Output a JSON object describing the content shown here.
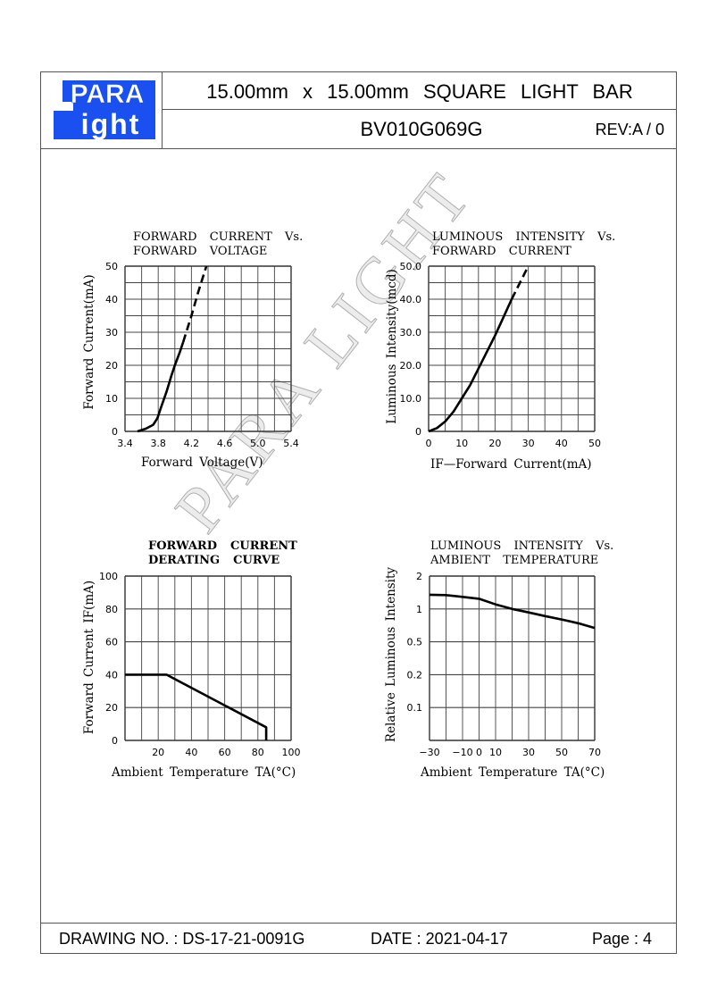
{
  "header": {
    "logo_text_top": "PARA",
    "logo_text_bottom": "ight",
    "title": "15.00mm x 15.00mm   SQUARE   LIGHT   BAR",
    "part_number": "BV010G069G",
    "revision": "REV:A / 0"
  },
  "footer": {
    "drawing_no": "DRAWING NO. : DS-17-21-0091G",
    "date": "DATE : 2021-04-17",
    "page": "Page : 4"
  },
  "watermark": "PARA LIGHT",
  "colors": {
    "brand_blue": "#1a4ff0",
    "grid": "#666666",
    "curve": "#000000"
  },
  "chart_data": [
    {
      "type": "line",
      "title": "FORWARD  CURRENT  Vs.\nFORWARD  VOLTAGE",
      "xlabel": "Forward Voltage(V)",
      "ylabel": "Forward Current(mA)",
      "xlim": [
        3.4,
        5.4
      ],
      "ylim": [
        0,
        50
      ],
      "x_ticks": [
        "3.4",
        "3.8",
        "4.2",
        "4.6",
        "5.0",
        "5.4"
      ],
      "x_tick_values": [
        3.4,
        3.8,
        4.2,
        4.6,
        5.0,
        5.4
      ],
      "y_ticks": [
        "0",
        "10",
        "20",
        "30",
        "40",
        "50"
      ],
      "y_tick_values": [
        0,
        10,
        20,
        30,
        40,
        50
      ],
      "grid": true,
      "grid_cols": 10,
      "grid_rows": 10,
      "series": [
        {
          "name": "measured",
          "style": "solid",
          "points": [
            [
              3.55,
              0
            ],
            [
              3.65,
              0.8
            ],
            [
              3.74,
              2
            ],
            [
              3.79,
              4
            ],
            [
              3.83,
              7
            ],
            [
              3.9,
              12
            ],
            [
              3.96,
              17
            ],
            [
              4.0,
              20
            ],
            [
              4.06,
              24
            ],
            [
              4.1,
              27
            ]
          ]
        },
        {
          "name": "extrapolated",
          "style": "dashed",
          "points": [
            [
              4.1,
              27
            ],
            [
              4.2,
              35
            ],
            [
              4.28,
              42
            ],
            [
              4.38,
              50
            ]
          ]
        }
      ]
    },
    {
      "type": "line",
      "title": "LUMINOUS  INTENSITY  Vs.\nFORWARD  CURRENT",
      "xlabel": "IF—Forward Current(mA)",
      "ylabel": "Luminous Intensity(mcd)",
      "xlim": [
        0,
        50
      ],
      "ylim": [
        0,
        50
      ],
      "x_ticks": [
        "0",
        "10",
        "20",
        "30",
        "40",
        "50"
      ],
      "x_tick_values": [
        0,
        10,
        20,
        30,
        40,
        50
      ],
      "y_ticks": [
        "0",
        "10.0",
        "20.0",
        "30.0",
        "40.0",
        "50.0"
      ],
      "y_tick_values": [
        0,
        10,
        20,
        30,
        40,
        50
      ],
      "grid": true,
      "grid_cols": 10,
      "grid_rows": 10,
      "series": [
        {
          "name": "measured",
          "style": "solid",
          "points": [
            [
              0,
              0
            ],
            [
              2.5,
              1
            ],
            [
              5,
              3
            ],
            [
              7.5,
              6
            ],
            [
              10,
              10
            ],
            [
              12.5,
              14
            ],
            [
              15,
              19
            ],
            [
              17.5,
              24
            ],
            [
              20,
              29
            ],
            [
              22.5,
              34.5
            ],
            [
              25,
              40
            ]
          ]
        },
        {
          "name": "extrapolated",
          "style": "dashed",
          "points": [
            [
              25,
              40
            ],
            [
              27.5,
              45
            ],
            [
              30,
              50
            ]
          ]
        }
      ]
    },
    {
      "type": "line",
      "title": "FORWARD  CURRENT\nDERATING  CURVE",
      "xlabel": "Ambient Temperature TA(°C)",
      "ylabel": "Forward Current IF(mA)",
      "xlim": [
        0,
        100
      ],
      "ylim": [
        0,
        100
      ],
      "x_ticks": [
        "20",
        "40",
        "60",
        "80",
        "100"
      ],
      "x_tick_values": [
        20,
        40,
        60,
        80,
        100
      ],
      "y_ticks": [
        "0",
        "20",
        "40",
        "60",
        "80",
        "100"
      ],
      "y_tick_values": [
        0,
        20,
        40,
        60,
        80,
        100
      ],
      "grid": true,
      "grid_cols": 10,
      "grid_rows": 5,
      "series": [
        {
          "name": "derating",
          "style": "solid",
          "points": [
            [
              0,
              40
            ],
            [
              25,
              40
            ],
            [
              85,
              8
            ],
            [
              85,
              0
            ]
          ]
        }
      ]
    },
    {
      "type": "line",
      "title": "LUMINOUS  INTENSITY  Vs.\nAMBIENT  TEMPERATURE",
      "xlabel": "Ambient Temperature TA(°C)",
      "ylabel": "Relative Luminous Intensity",
      "xlim": [
        -30,
        70
      ],
      "ylim": [
        0.05,
        2
      ],
      "y_scale": "log-ticks",
      "x_ticks": [
        "−30",
        "−10",
        "0",
        "10",
        "30",
        "50",
        "70"
      ],
      "x_tick_values": [
        -30,
        -10,
        0,
        10,
        30,
        50,
        70
      ],
      "y_ticks": [
        "0.1",
        "0.2",
        "0.5",
        "1",
        "2"
      ],
      "y_tick_values": [
        0.1,
        0.2,
        0.5,
        1,
        2
      ],
      "grid": true,
      "grid_cols": 10,
      "grid_rows": 5,
      "series": [
        {
          "name": "relative intensity",
          "style": "solid",
          "points": [
            [
              -30,
              1.35
            ],
            [
              -20,
              1.34
            ],
            [
              -10,
              1.29
            ],
            [
              0,
              1.24
            ],
            [
              10,
              1.1
            ],
            [
              20,
              1.0
            ],
            [
              30,
              0.93
            ],
            [
              40,
              0.86
            ],
            [
              50,
              0.8
            ],
            [
              60,
              0.74
            ],
            [
              70,
              0.67
            ]
          ]
        }
      ]
    }
  ]
}
